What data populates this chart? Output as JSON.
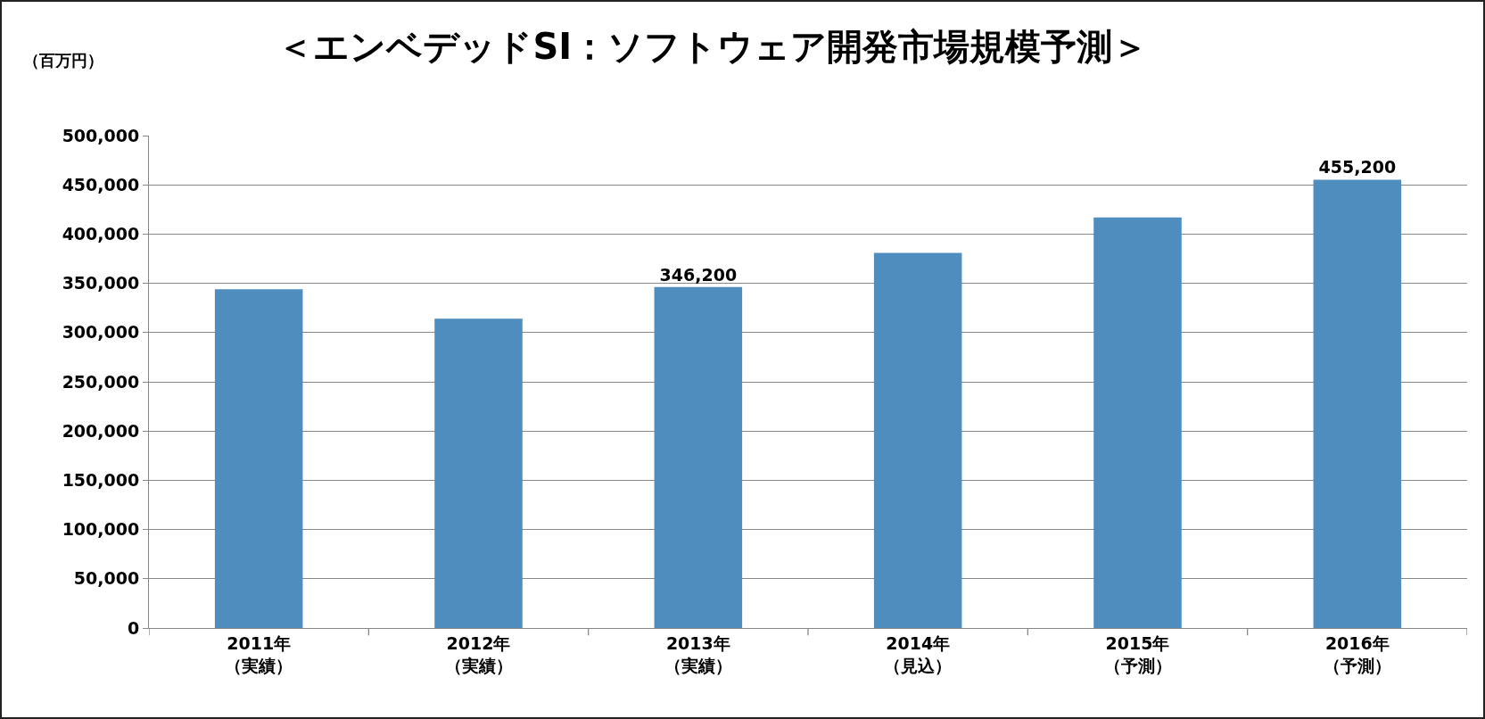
{
  "chart_data": {
    "type": "bar",
    "title": "＜エンベデッドSI：ソフトウェア開発市場規模予測＞",
    "ylabel": "（百万円）",
    "categories": [
      "2011年（実績）",
      "2012年（実績）",
      "2013年（実績）",
      "2014年（見込）",
      "2015年（予測）",
      "2016年（予測）"
    ],
    "values": [
      344000,
      314000,
      346200,
      381000,
      417000,
      455200
    ],
    "value_labels": [
      null,
      null,
      "346,200",
      null,
      null,
      "455,200"
    ],
    "color": "#4f8dbe",
    "ylim": [
      0,
      500000
    ],
    "yticks": [
      {
        "value": 0,
        "label": "0"
      },
      {
        "value": 50000,
        "label": "50,000"
      },
      {
        "value": 100000,
        "label": "100,000"
      },
      {
        "value": 150000,
        "label": "150,000"
      },
      {
        "value": 200000,
        "label": "200,000"
      },
      {
        "value": 250000,
        "label": "250,000"
      },
      {
        "value": 300000,
        "label": "300,000"
      },
      {
        "value": 350000,
        "label": "350,000"
      },
      {
        "value": 400000,
        "label": "400,000"
      },
      {
        "value": 450000,
        "label": "450,000"
      },
      {
        "value": 500000,
        "label": "500,000"
      }
    ],
    "grid": "y",
    "legend": false
  }
}
